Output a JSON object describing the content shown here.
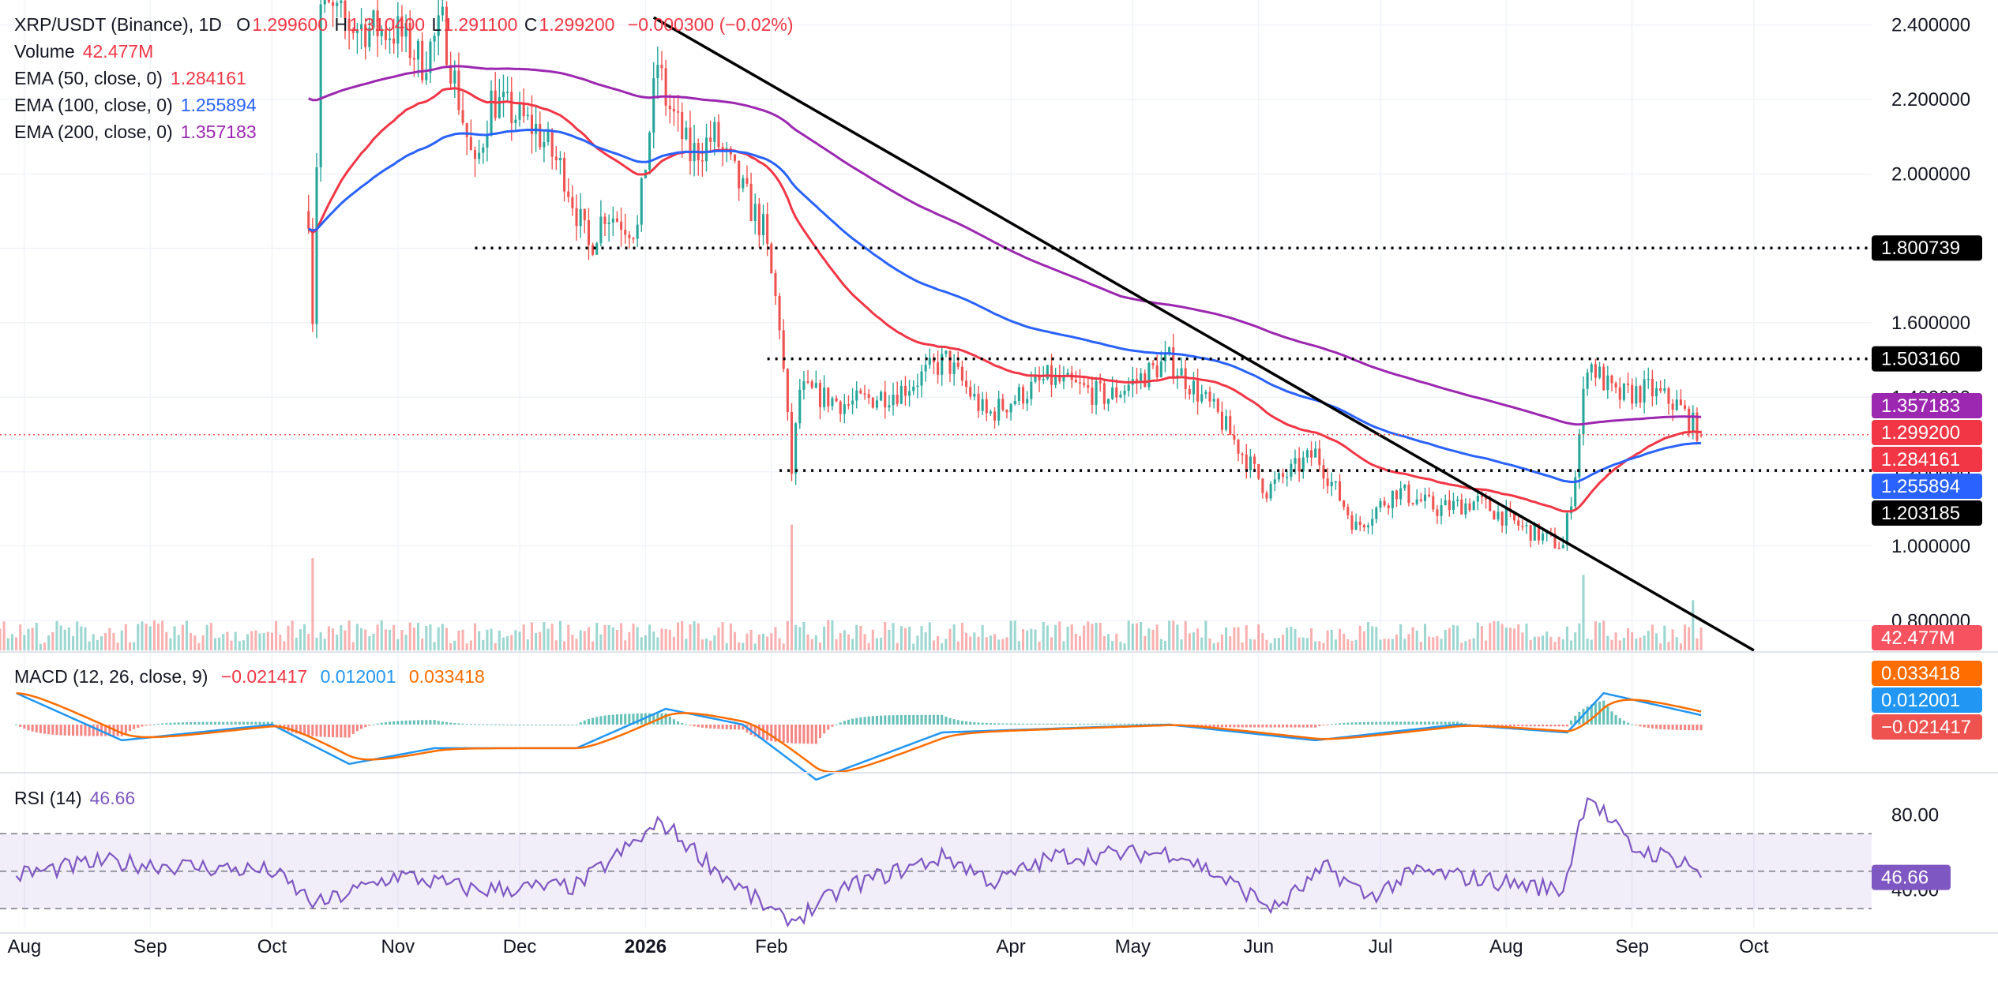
{
  "header": {
    "symbol": "XRP/USDT (Binance), 1D",
    "open_label": "O",
    "open": "1.299600",
    "high_label": "H",
    "high": "1.310400",
    "low_label": "L",
    "low": "1.291100",
    "close_label": "C",
    "close": "1.299200",
    "change": "−0.000300 (−0.02%)"
  },
  "legend": {
    "volume": {
      "label": "Volume",
      "value": "42.477M"
    },
    "ema50": {
      "label": "EMA (50, close, 0)",
      "value": "1.284161"
    },
    "ema100": {
      "label": "EMA (100, close, 0)",
      "value": "1.255894"
    },
    "ema200": {
      "label": "EMA (200, close, 0)",
      "value": "1.357183"
    },
    "macd": {
      "label": "MACD (12, 26, close, 9)",
      "hist": "−0.021417",
      "macd": "0.012001",
      "signal": "0.033418"
    },
    "rsi": {
      "label": "RSI (14)",
      "value": "46.66"
    }
  },
  "colors": {
    "up": "#26a69a",
    "down": "#ef5350",
    "ema50": "#f23645",
    "ema100": "#2962ff",
    "ema200": "#9c27b0",
    "macd": "#2196f3",
    "signal": "#ff6d00",
    "rsi": "#7e57c2",
    "level_box": "#000000"
  },
  "chart_data": [
    {
      "type": "candlestick",
      "name": "price",
      "ylim": [
        0.72,
        2.45
      ],
      "y_ticks": [
        "2.400000",
        "2.200000",
        "2.000000",
        "1.800000",
        "1.600000",
        "1.400000",
        "1.200000",
        "1.000000",
        "0.800000"
      ],
      "x_ticks": [
        "Aug",
        "Sep",
        "Oct",
        "Nov",
        "Dec",
        "2026",
        "Feb",
        "Apr",
        "May",
        "Jun",
        "Jul",
        "Aug",
        "Sep",
        "Oct"
      ],
      "horizontal_levels": [
        {
          "value": 1.800739,
          "label": "1.800739"
        },
        {
          "value": 1.50316,
          "label": "1.503160"
        },
        {
          "value": 1.203185,
          "label": "1.203185"
        }
      ],
      "last_price": {
        "value": 1.2992,
        "label": "1.299200"
      },
      "ema_labels": [
        {
          "name": "EMA 200",
          "value": 1.357183,
          "label": "1.357183"
        },
        {
          "name": "EMA 50",
          "value": 1.284161,
          "label": "1.284161"
        },
        {
          "name": "EMA 100",
          "value": 1.255894,
          "label": "1.255894"
        }
      ],
      "volume_label": "42.477M",
      "trendline": {
        "from": {
          "date": "2026-01-03",
          "price": 2.42
        },
        "to": {
          "date": "2026-10-01",
          "price": 0.72
        }
      },
      "anchors": [
        {
          "date": "2025-10-10",
          "close": 1.9
        },
        {
          "date": "2025-10-11",
          "close": 1.62
        },
        {
          "date": "2025-10-13",
          "close": 2.45
        },
        {
          "date": "2025-10-20",
          "close": 2.4
        },
        {
          "date": "2025-11-01",
          "close": 2.38
        },
        {
          "date": "2025-11-07",
          "close": 2.3
        },
        {
          "date": "2025-11-12",
          "close": 2.4
        },
        {
          "date": "2025-11-20",
          "close": 2.0
        },
        {
          "date": "2025-11-24",
          "close": 2.2
        },
        {
          "date": "2025-12-05",
          "close": 2.12
        },
        {
          "date": "2025-12-12",
          "close": 2.0
        },
        {
          "date": "2025-12-18",
          "close": 1.8
        },
        {
          "date": "2025-12-22",
          "close": 1.9
        },
        {
          "date": "2025-12-30",
          "close": 1.85
        },
        {
          "date": "2026-01-04",
          "close": 2.3
        },
        {
          "date": "2026-01-06",
          "close": 2.2
        },
        {
          "date": "2026-01-12",
          "close": 2.05
        },
        {
          "date": "2026-01-18",
          "close": 2.1
        },
        {
          "date": "2026-01-25",
          "close": 1.95
        },
        {
          "date": "2026-01-30",
          "close": 1.85
        },
        {
          "date": "2026-02-03",
          "close": 1.6
        },
        {
          "date": "2026-02-06",
          "close": 1.2
        },
        {
          "date": "2026-02-08",
          "close": 1.42
        },
        {
          "date": "2026-02-20",
          "close": 1.38
        },
        {
          "date": "2026-03-05",
          "close": 1.42
        },
        {
          "date": "2026-03-16",
          "close": 1.5
        },
        {
          "date": "2026-03-26",
          "close": 1.35
        },
        {
          "date": "2026-04-10",
          "close": 1.45
        },
        {
          "date": "2026-04-25",
          "close": 1.4
        },
        {
          "date": "2026-05-10",
          "close": 1.5
        },
        {
          "date": "2026-05-22",
          "close": 1.35
        },
        {
          "date": "2026-06-03",
          "close": 1.15
        },
        {
          "date": "2026-06-15",
          "close": 1.25
        },
        {
          "date": "2026-06-25",
          "close": 1.05
        },
        {
          "date": "2026-07-05",
          "close": 1.15
        },
        {
          "date": "2026-07-15",
          "close": 1.1
        },
        {
          "date": "2026-07-25",
          "close": 1.12
        },
        {
          "date": "2026-08-05",
          "close": 1.05
        },
        {
          "date": "2026-08-15",
          "close": 1.0
        },
        {
          "date": "2026-08-18",
          "close": 1.2
        },
        {
          "date": "2026-08-21",
          "close": 1.5
        },
        {
          "date": "2026-08-28",
          "close": 1.4
        },
        {
          "date": "2026-09-05",
          "close": 1.42
        },
        {
          "date": "2026-09-12",
          "close": 1.38
        },
        {
          "date": "2026-09-18",
          "close": 1.3
        }
      ]
    },
    {
      "type": "bar",
      "name": "volume",
      "ylim": [
        0,
        160
      ],
      "spikes": [
        {
          "date": "2025-10-11",
          "value": 110
        },
        {
          "date": "2026-02-06",
          "value": 150
        },
        {
          "date": "2026-08-20",
          "value": 90
        },
        {
          "date": "2026-09-16",
          "value": 60
        }
      ]
    },
    {
      "type": "line",
      "name": "macd",
      "anchors": [
        {
          "date": "2025-07-30",
          "macd": 0.04
        },
        {
          "date": "2025-08-25",
          "macd": -0.02
        },
        {
          "date": "2025-10-01",
          "macd": 0.0
        },
        {
          "date": "2025-10-20",
          "macd": -0.05
        },
        {
          "date": "2025-11-10",
          "macd": -0.03
        },
        {
          "date": "2025-12-15",
          "macd": -0.03
        },
        {
          "date": "2026-01-06",
          "macd": 0.02
        },
        {
          "date": "2026-01-25",
          "macd": 0.0
        },
        {
          "date": "2026-02-12",
          "macd": -0.07
        },
        {
          "date": "2026-03-15",
          "macd": -0.01
        },
        {
          "date": "2026-05-10",
          "macd": 0.0
        },
        {
          "date": "2026-06-15",
          "macd": -0.02
        },
        {
          "date": "2026-07-20",
          "macd": 0.0
        },
        {
          "date": "2026-08-16",
          "macd": -0.01
        },
        {
          "date": "2026-08-25",
          "macd": 0.04
        },
        {
          "date": "2026-09-18",
          "macd": 0.012
        }
      ]
    },
    {
      "type": "line",
      "name": "rsi",
      "ylim": [
        20,
        100
      ],
      "y_ticks": [
        "80.00",
        "40.00"
      ],
      "bands": [
        70,
        50,
        30
      ],
      "last": "46.66",
      "anchors": [
        {
          "date": "2025-07-30",
          "rsi": 48
        },
        {
          "date": "2025-08-20",
          "rsi": 55
        },
        {
          "date": "2025-09-15",
          "rsi": 52
        },
        {
          "date": "2025-10-01",
          "rsi": 50
        },
        {
          "date": "2025-10-12",
          "rsi": 32
        },
        {
          "date": "2025-11-01",
          "rsi": 48
        },
        {
          "date": "2025-11-20",
          "rsi": 40
        },
        {
          "date": "2025-12-15",
          "rsi": 42
        },
        {
          "date": "2026-01-05",
          "rsi": 76
        },
        {
          "date": "2026-01-20",
          "rsi": 48
        },
        {
          "date": "2026-02-05",
          "rsi": 22
        },
        {
          "date": "2026-02-20",
          "rsi": 42
        },
        {
          "date": "2026-03-16",
          "rsi": 58
        },
        {
          "date": "2026-03-28",
          "rsi": 44
        },
        {
          "date": "2026-04-12",
          "rsi": 58
        },
        {
          "date": "2026-05-12",
          "rsi": 60
        },
        {
          "date": "2026-06-05",
          "rsi": 30
        },
        {
          "date": "2026-06-18",
          "rsi": 52
        },
        {
          "date": "2026-06-28",
          "rsi": 36
        },
        {
          "date": "2026-07-10",
          "rsi": 50
        },
        {
          "date": "2026-08-15",
          "rsi": 40
        },
        {
          "date": "2026-08-21",
          "rsi": 92
        },
        {
          "date": "2026-09-01",
          "rsi": 62
        },
        {
          "date": "2026-09-15",
          "rsi": 55
        },
        {
          "date": "2026-09-18",
          "rsi": 46.66
        }
      ]
    }
  ]
}
